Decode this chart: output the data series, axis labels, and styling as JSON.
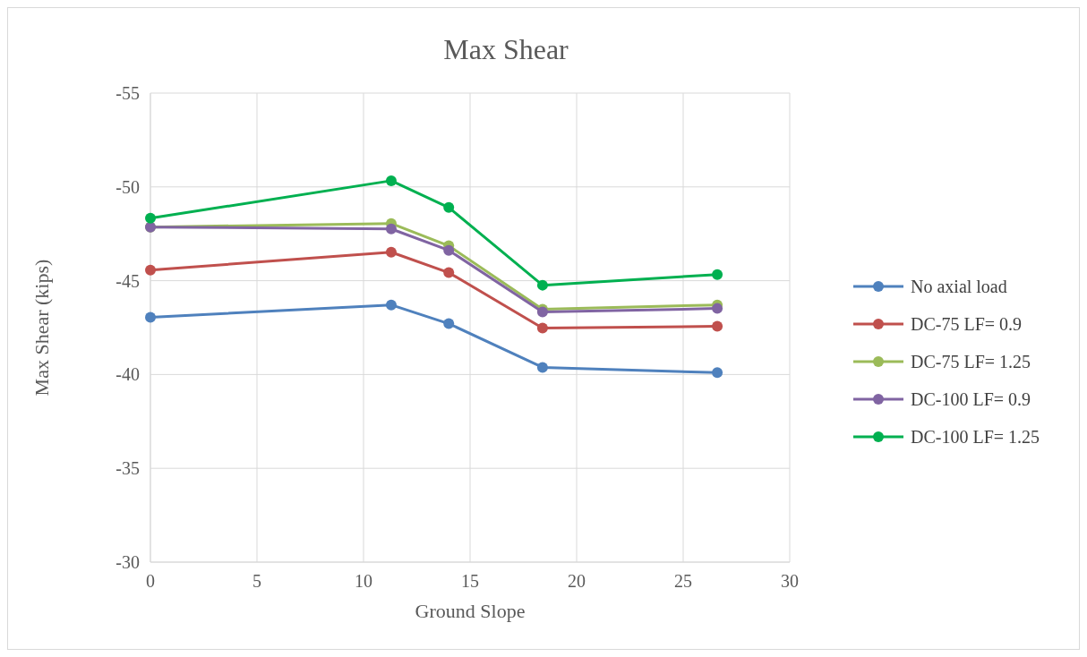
{
  "chart_data": {
    "type": "line",
    "title": "Max Shear",
    "xlabel": "Ground Slope",
    "ylabel": "Max Shear (kips)",
    "x": [
      0,
      11.3,
      14,
      18.4,
      26.6
    ],
    "xlim": [
      0,
      30
    ],
    "xticks": [
      0,
      5,
      10,
      15,
      20,
      25,
      30
    ],
    "ylim": [
      -30,
      -55
    ],
    "yticks": [
      -30,
      -35,
      -40,
      -45,
      -50,
      -55
    ],
    "grid": true,
    "legend": "right",
    "marker": "circle",
    "line_style": "solid",
    "series": [
      {
        "name": "No axial load",
        "color": "#4f81bd",
        "values": [
          -43.05,
          -43.71,
          -42.71,
          -40.38,
          -40.1
        ]
      },
      {
        "name": "DC-75 LF= 0.9",
        "color": "#c0504d",
        "values": [
          -45.57,
          -46.52,
          -45.43,
          -42.48,
          -42.57
        ]
      },
      {
        "name": "DC-75 LF= 1.25",
        "color": "#9bbb59",
        "values": [
          -47.86,
          -48.05,
          -46.86,
          -43.48,
          -43.71
        ]
      },
      {
        "name": "DC-100 LF= 0.9",
        "color": "#8064a2",
        "values": [
          -47.86,
          -47.76,
          -46.62,
          -43.33,
          -43.52
        ]
      },
      {
        "name": "DC-100 LF= 1.25",
        "color": "#00b050",
        "values": [
          -48.33,
          -50.33,
          -48.9,
          -44.76,
          -45.33
        ]
      }
    ]
  }
}
